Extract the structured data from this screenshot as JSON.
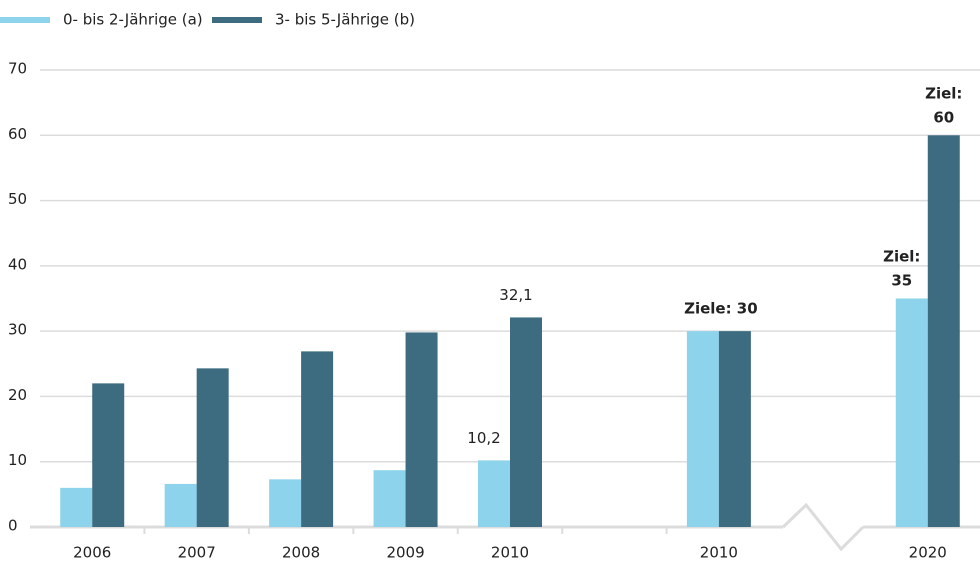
{
  "chart_data": {
    "type": "bar",
    "categories": [
      "2006",
      "2007",
      "2008",
      "2009",
      "2010",
      null,
      "2010",
      null,
      "2020"
    ],
    "series": [
      {
        "name": "0- bis 2-Jährige (a)",
        "color": "#8dd3ec",
        "values": [
          6,
          6.6,
          7.3,
          8.7,
          10.2,
          null,
          30,
          null,
          35
        ],
        "value_labels": [
          null,
          null,
          null,
          null,
          "10,2",
          null,
          null,
          null,
          "Ziel: 35"
        ]
      },
      {
        "name": "3- bis 5-Jährige (b)",
        "color": "#3d6b80",
        "values": [
          22,
          24.3,
          26.9,
          29.8,
          32.1,
          null,
          30,
          null,
          60
        ],
        "value_labels": [
          null,
          null,
          null,
          null,
          "32,1",
          null,
          null,
          null,
          "Ziel: 60"
        ]
      }
    ],
    "annotations": [
      {
        "text": "Ziele: 30",
        "category_index": 6,
        "value": 30
      }
    ],
    "ylim": [
      0,
      70
    ],
    "yticks": [
      0,
      10,
      20,
      30,
      40,
      50,
      60,
      70
    ],
    "grid": true,
    "legend": "top-left"
  }
}
